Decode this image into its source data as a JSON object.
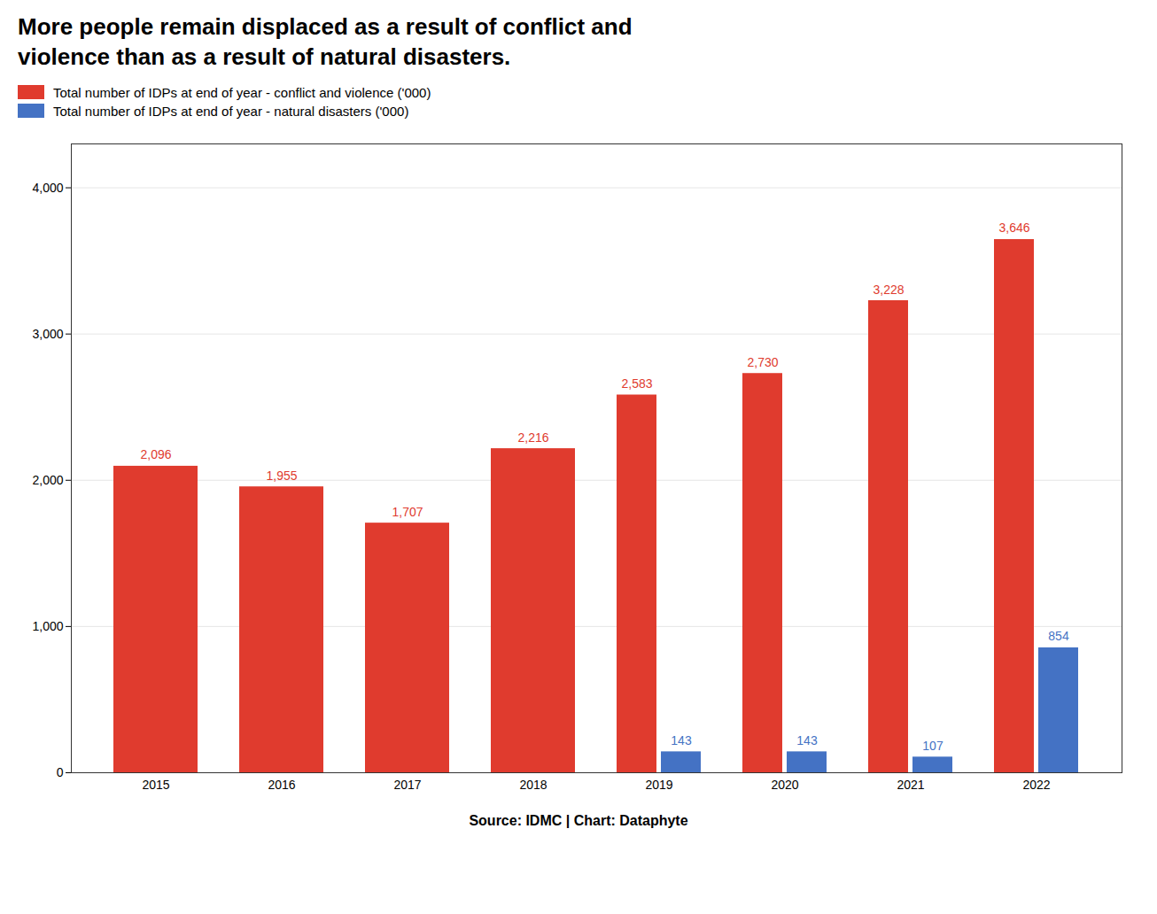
{
  "chart_data": {
    "type": "bar",
    "title": "More people remain displaced as a result of conflict and\nviolence than as a result of natural disasters.",
    "source": "Source: IDMC | Chart: Dataphyte",
    "categories": [
      "2015",
      "2016",
      "2017",
      "2018",
      "2019",
      "2020",
      "2021",
      "2022"
    ],
    "series": [
      {
        "name": "Total number of IDPs at end of year - conflict and violence ('000)",
        "color": "#E03B2E",
        "values": [
          2096,
          1955,
          1707,
          2216,
          2583,
          2730,
          3228,
          3646
        ],
        "value_labels": [
          "2,096",
          "1,955",
          "1,707",
          "2,216",
          "2,583",
          "2,730",
          "3,228",
          "3,646"
        ]
      },
      {
        "name": "Total number of IDPs at end of year - natural disasters ('000)",
        "color": "#4472C4",
        "values": [
          null,
          null,
          null,
          null,
          143,
          143,
          107,
          854
        ]
      }
    ],
    "ylim": [
      0,
      4300
    ],
    "yticks": [
      0,
      {
        "value": 1000,
        "label": "1,000"
      },
      {
        "value": 2000,
        "label": "2,000"
      },
      {
        "value": 3000,
        "label": "3,000"
      },
      {
        "value": 4000,
        "label": "4,000"
      }
    ],
    "grid": true,
    "data_labels": true
  }
}
